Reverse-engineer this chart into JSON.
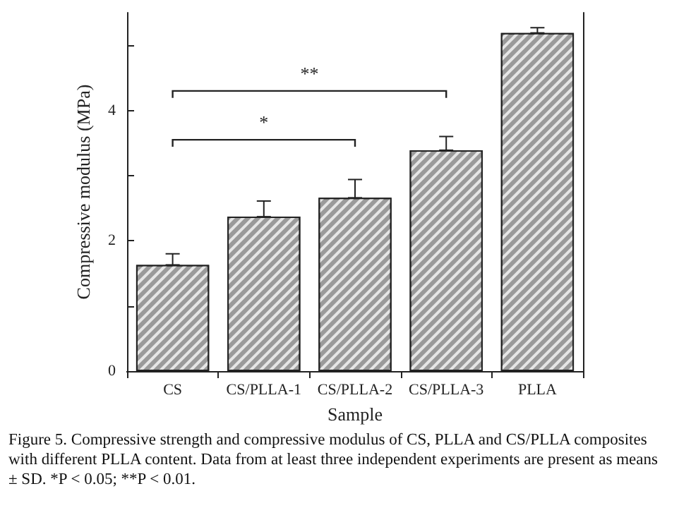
{
  "chart_data": {
    "type": "bar",
    "xlabel": "Sample",
    "ylabel": "Compressive modulus (MPa)",
    "categories": [
      "CS",
      "CS/PLLA-1",
      "CS/PLLA-2",
      "CS/PLLA-3",
      "PLLA"
    ],
    "values": [
      1.63,
      2.37,
      2.66,
      3.39,
      5.19
    ],
    "errors": [
      [
        1.63,
        1.8
      ],
      [
        2.37,
        2.61
      ],
      [
        2.66,
        2.94
      ],
      [
        3.39,
        3.6
      ],
      [
        5.19,
        5.27
      ]
    ],
    "color": "#9a9a9a",
    "ylim": [
      0,
      5.5
    ],
    "yticks": [
      0,
      {
        "value": 1,
        "label": null
      },
      2,
      {
        "value": 3,
        "label": null
      },
      4,
      {
        "value": 5,
        "label": null
      }
    ],
    "grid": false,
    "annotations": [
      "*",
      "**",
      "Figure 5. Compressive strength and compressive modulus of CS, PLLA and CS/PLLA composites with different PLLA content. Data from at least three independent experiments are present as means ± SD. *P < 0.05; **P < 0.01."
    ]
  }
}
